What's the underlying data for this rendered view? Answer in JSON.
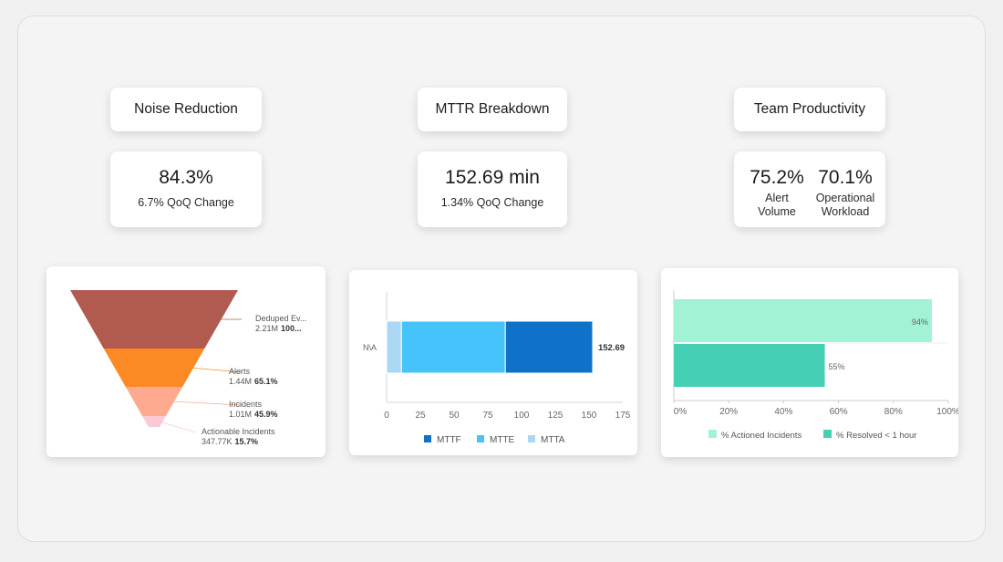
{
  "noise": {
    "title": "Noise Reduction",
    "value": "84.3%",
    "sub": "6.7% QoQ Change"
  },
  "mttr": {
    "title": "MTTR Breakdown",
    "value": "152.69 min",
    "sub": "1.34% QoQ Change"
  },
  "team": {
    "title": "Team Productivity",
    "m1_value": "75.2%",
    "m1_line1": "Alert",
    "m1_line2": "Volume",
    "m2_value": "70.1%",
    "m2_line1": "Operational",
    "m2_line2": "Workload"
  },
  "chart_data": [
    {
      "type": "funnel",
      "stages": [
        {
          "label": "Deduped Ev...",
          "display_value": "2.21M",
          "display_pct": "100...",
          "value": 2210000,
          "pct": 100,
          "color": "#b05a50"
        },
        {
          "label": "Alerts",
          "display_value": "1.44M",
          "display_pct": "65.1%",
          "value": 1440000,
          "pct": 65.1,
          "color": "#fb8a24"
        },
        {
          "label": "Incidents",
          "display_value": "1.01M",
          "display_pct": "45.9%",
          "value": 1010000,
          "pct": 45.9,
          "color": "#fdaa90"
        },
        {
          "label": "Actionable Incidents",
          "display_value": "347.77K",
          "display_pct": "15.7%",
          "value": 347770,
          "pct": 15.7,
          "color": "#fbc8d6"
        }
      ]
    },
    {
      "type": "bar",
      "orientation": "horizontal",
      "stacked": true,
      "categories": [
        "N\\A"
      ],
      "series": [
        {
          "name": "MTTA",
          "values": [
            11
          ],
          "color": "#aad8f4"
        },
        {
          "name": "MTTE",
          "values": [
            77
          ],
          "color": "#46c3fb"
        },
        {
          "name": "MTTF",
          "values": [
            64.69
          ],
          "color": "#0f72c8"
        }
      ],
      "legend_order": [
        "MTTF",
        "MTTE",
        "MTTA"
      ],
      "total_label": "152.69",
      "xlim": [
        0,
        175
      ],
      "xticks": [
        "0",
        "25",
        "50",
        "75",
        "100",
        "125",
        "150",
        "175"
      ],
      "legend": "bottom"
    },
    {
      "type": "bar",
      "orientation": "horizontal",
      "series": [
        {
          "name": "% Actioned Incidents",
          "value": 94,
          "label": "94%",
          "color": "#a2f2d5"
        },
        {
          "name": "% Resolved < 1 hour",
          "value": 55,
          "label": "55%",
          "color": "#45d0b6"
        }
      ],
      "xlim": [
        0,
        100
      ],
      "xticks": [
        "0%",
        "20%",
        "40%",
        "60%",
        "80%",
        "100%"
      ],
      "legend": "bottom"
    }
  ]
}
